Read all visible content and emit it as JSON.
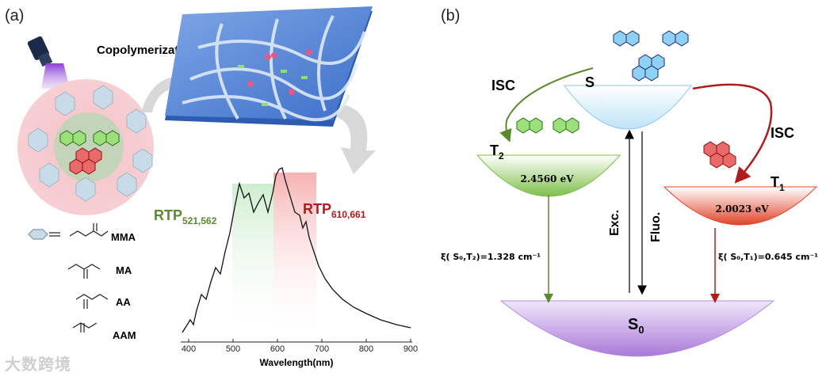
{
  "panel_a": {
    "label": "(a)",
    "process_title": "Copolymerization",
    "monomers": [
      {
        "abbr": "MMA"
      },
      {
        "abbr": "MA"
      },
      {
        "abbr": "AA"
      },
      {
        "abbr": "AAM"
      }
    ],
    "spectrum": {
      "peak_green": {
        "main": "RTP",
        "sub": "521,562"
      },
      "peak_red": {
        "main": "RTP",
        "sub": "610,661"
      },
      "xlabel": "Wavelength(nm)",
      "xticks": [
        "400",
        "500",
        "600",
        "700",
        "800",
        "900"
      ]
    }
  },
  "panel_b": {
    "label": "(b)",
    "isc_left": "ISC",
    "isc_right": "ISC",
    "state_s": "S",
    "state_t2": {
      "main": "T",
      "sub": "2"
    },
    "state_t1": {
      "main": "T",
      "sub": "1"
    },
    "state_s0": {
      "main": "S",
      "sub": "0"
    },
    "t2_energy": "2.4560 eV",
    "t1_energy": "2.0023 eV",
    "exc": "Exc.",
    "fluo": "Fluo.",
    "soc_t2": "ξ( S₀,T₂)=1.328 cm⁻¹",
    "soc_t1": "ξ( S₀,T₁)=0.645 cm⁻¹"
  },
  "watermark": "大数跨境",
  "colors": {
    "green": "#5a8a2e",
    "red": "#b01c1c",
    "purple": "#b48be0",
    "blue": "#c9e6f6"
  }
}
